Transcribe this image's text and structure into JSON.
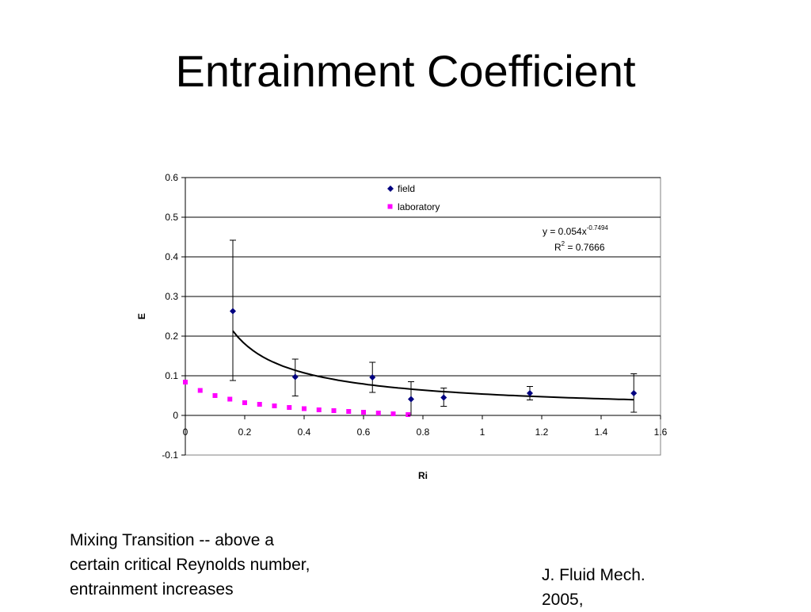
{
  "slide": {
    "title": "Entrainment Coefficient",
    "note_line1": "Mixing Transition --  above a",
    "note_line2": "certain critical Reynolds number,",
    "note_line3": "entrainment increases",
    "citation_line1": "J. Fluid Mech.",
    "citation_line2": "2005,"
  },
  "chart_data": {
    "type": "scatter",
    "title": "",
    "xlabel": "Ri",
    "ylabel": "E",
    "xlim": [
      0,
      1.6
    ],
    "ylim": [
      -0.1,
      0.6
    ],
    "x_ticks": [
      0,
      0.2,
      0.4,
      0.6,
      0.8,
      1,
      1.2,
      1.4,
      1.6
    ],
    "x_tick_labels": [
      "0",
      "0.2",
      "0.4",
      "0.6",
      "0.8",
      "1",
      "1.2",
      "1.4",
      "1.6"
    ],
    "y_ticks": [
      -0.1,
      0,
      0.1,
      0.2,
      0.3,
      0.4,
      0.5,
      0.6
    ],
    "y_tick_labels": [
      "-0.1",
      "0",
      "0.1",
      "0.2",
      "0.3",
      "0.4",
      "0.5",
      "0.6"
    ],
    "grid": "horizontal",
    "legend_position": "top-center",
    "series": [
      {
        "name": "field",
        "marker": "diamond",
        "color": "#000080",
        "points": [
          {
            "x": 0.16,
            "y": 0.263,
            "err_low": 0.088,
            "err_high": 0.442
          },
          {
            "x": 0.37,
            "y": 0.097,
            "err_low": 0.049,
            "err_high": 0.142
          },
          {
            "x": 0.63,
            "y": 0.096,
            "err_low": 0.058,
            "err_high": 0.134
          },
          {
            "x": 0.76,
            "y": 0.041,
            "err_low": 0.0,
            "err_high": 0.085
          },
          {
            "x": 0.87,
            "y": 0.045,
            "err_low": 0.023,
            "err_high": 0.069
          },
          {
            "x": 1.16,
            "y": 0.056,
            "err_low": 0.039,
            "err_high": 0.073
          },
          {
            "x": 1.51,
            "y": 0.056,
            "err_low": 0.008,
            "err_high": 0.105
          }
        ]
      },
      {
        "name": "laboratory",
        "marker": "square",
        "color": "#ff00ff",
        "points": [
          {
            "x": 0.0,
            "y": 0.084
          },
          {
            "x": 0.05,
            "y": 0.063
          },
          {
            "x": 0.1,
            "y": 0.05
          },
          {
            "x": 0.15,
            "y": 0.041
          },
          {
            "x": 0.2,
            "y": 0.032
          },
          {
            "x": 0.25,
            "y": 0.028
          },
          {
            "x": 0.3,
            "y": 0.024
          },
          {
            "x": 0.35,
            "y": 0.02
          },
          {
            "x": 0.4,
            "y": 0.017
          },
          {
            "x": 0.45,
            "y": 0.014
          },
          {
            "x": 0.5,
            "y": 0.012
          },
          {
            "x": 0.55,
            "y": 0.01
          },
          {
            "x": 0.6,
            "y": 0.008
          },
          {
            "x": 0.65,
            "y": 0.006
          },
          {
            "x": 0.7,
            "y": 0.004
          },
          {
            "x": 0.75,
            "y": 0.002
          }
        ]
      }
    ],
    "trendline": {
      "type": "power",
      "coefficient": 0.054,
      "exponent": -0.7494,
      "x_range": [
        0.16,
        1.51
      ],
      "color": "#000000"
    },
    "annotations": {
      "equation_prefix": "y = 0.054x",
      "equation_exponent": "-0.7494",
      "r2_prefix": "R",
      "r2_exponent": "2",
      "r2_value": " = 0.7666"
    }
  }
}
